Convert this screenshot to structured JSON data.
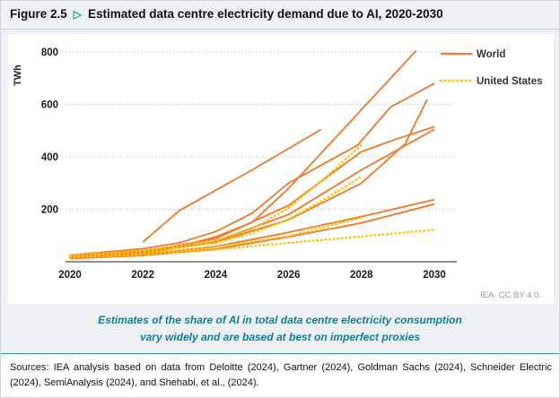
{
  "figure": {
    "label": "Figure 2.5",
    "arrow": "▷",
    "title": "Estimated data centre electricity demand due to AI, 2020-2030"
  },
  "chart_data": {
    "type": "line",
    "title": "Estimated data centre electricity demand due to AI, 2020-2030",
    "xlabel": "",
    "ylabel": "TWh",
    "xlim": [
      2019.8,
      2030.5
    ],
    "ylim": [
      0,
      860
    ],
    "x_ticks": [
      2020,
      2022,
      2024,
      2026,
      2028,
      2030
    ],
    "y_ticks": [
      200,
      400,
      600,
      800
    ],
    "grid": "horizontal dotted gridlines, no vertical grid",
    "legend_position": "top-right",
    "legend": [
      {
        "name": "World",
        "style": "solid",
        "color": "#ED7D31"
      },
      {
        "name": "United States",
        "style": "dotted",
        "color": "#FFC000"
      }
    ],
    "series": [
      {
        "name": "World estimate 1",
        "group": "World",
        "points": [
          [
            2022,
            75
          ],
          [
            2023,
            195
          ],
          [
            2025,
            350
          ],
          [
            2026.9,
            505
          ]
        ]
      },
      {
        "name": "World estimate 2",
        "group": "World",
        "points": [
          [
            2020,
            20
          ],
          [
            2022,
            42
          ],
          [
            2023,
            58
          ],
          [
            2024,
            95
          ],
          [
            2025,
            150
          ],
          [
            2026,
            280
          ],
          [
            2027,
            430
          ],
          [
            2028,
            580
          ],
          [
            2029,
            730
          ],
          [
            2029.5,
            805
          ]
        ]
      },
      {
        "name": "World estimate 3",
        "group": "World",
        "points": [
          [
            2020,
            25
          ],
          [
            2022,
            50
          ],
          [
            2023,
            72
          ],
          [
            2024,
            115
          ],
          [
            2025,
            185
          ],
          [
            2026,
            300
          ],
          [
            2027.9,
            445
          ],
          [
            2028.8,
            590
          ],
          [
            2030,
            680
          ]
        ]
      },
      {
        "name": "World estimate 4",
        "group": "World",
        "points": [
          [
            2020,
            18
          ],
          [
            2022,
            35
          ],
          [
            2024,
            75
          ],
          [
            2026,
            160
          ],
          [
            2028,
            300
          ],
          [
            2029.2,
            450
          ],
          [
            2029.8,
            618
          ]
        ]
      },
      {
        "name": "World estimate 5",
        "group": "World",
        "points": [
          [
            2020,
            18
          ],
          [
            2022,
            38
          ],
          [
            2024,
            88
          ],
          [
            2026,
            215
          ],
          [
            2028,
            420
          ],
          [
            2028.9,
            465
          ],
          [
            2030,
            515
          ]
        ]
      },
      {
        "name": "World estimate 6",
        "group": "World",
        "points": [
          [
            2020,
            15
          ],
          [
            2022,
            32
          ],
          [
            2024,
            78
          ],
          [
            2026,
            180
          ],
          [
            2028,
            350
          ],
          [
            2030,
            505
          ]
        ]
      },
      {
        "name": "World estimate 7",
        "group": "World",
        "points": [
          [
            2020,
            15
          ],
          [
            2022,
            28
          ],
          [
            2024,
            58
          ],
          [
            2026,
            112
          ],
          [
            2028,
            172
          ],
          [
            2030,
            237
          ]
        ]
      },
      {
        "name": "World estimate 8",
        "group": "World",
        "points": [
          [
            2020,
            12
          ],
          [
            2022,
            24
          ],
          [
            2024,
            48
          ],
          [
            2026,
            95
          ],
          [
            2028,
            148
          ],
          [
            2030,
            220
          ]
        ]
      },
      {
        "name": "United States estimate 1",
        "group": "United States",
        "points": [
          [
            2020,
            25
          ],
          [
            2022,
            42
          ],
          [
            2024,
            80
          ],
          [
            2025,
            125
          ],
          [
            2026,
            205
          ],
          [
            2027,
            320
          ],
          [
            2028,
            445
          ]
        ]
      },
      {
        "name": "United States estimate 2",
        "group": "United States",
        "points": [
          [
            2020,
            22
          ],
          [
            2022,
            36
          ],
          [
            2024,
            72
          ],
          [
            2025,
            108
          ],
          [
            2026,
            162
          ],
          [
            2027,
            240
          ],
          [
            2028,
            325
          ]
        ]
      },
      {
        "name": "United States estimate 3",
        "group": "United States",
        "points": [
          [
            2020,
            18
          ],
          [
            2022,
            30
          ],
          [
            2024,
            56
          ],
          [
            2026,
            98
          ],
          [
            2028,
            168
          ]
        ]
      },
      {
        "name": "United States estimate 4",
        "group": "United States",
        "points": [
          [
            2020,
            15
          ],
          [
            2022,
            26
          ],
          [
            2024,
            46
          ],
          [
            2026,
            72
          ],
          [
            2028,
            96
          ],
          [
            2030,
            122
          ]
        ]
      }
    ]
  },
  "chart_credit": "IEA. CC BY 4.0.",
  "caption": {
    "line1": "Estimates of the share of AI in total data centre electricity consumption",
    "line2": "vary widely and are based at best on imperfect proxies"
  },
  "sources": "Sources: IEA analysis based on data from Deloitte (2024), Gartner (2024), Goldman Sachs (2024), Schneider Electric (2024), SemiAnalysis (2024), and Shehabi, et al., (2024)."
}
